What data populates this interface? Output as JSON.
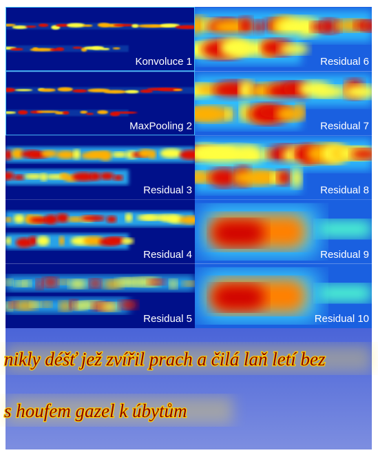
{
  "panels": [
    {
      "label": "Konvoluce 1"
    },
    {
      "label": "MaxPooling 2"
    },
    {
      "label": "Residual 3"
    },
    {
      "label": "Residual 4"
    },
    {
      "label": "Residual 5"
    },
    {
      "label": "Residual 6"
    },
    {
      "label": "Residual 7"
    },
    {
      "label": "Residual 8"
    },
    {
      "label": "Residual 9"
    },
    {
      "label": "Residual 10"
    }
  ],
  "text_lines": [
    "nikly déšť jež zvířil prach a čilá laň letí bez",
    "s houfem gazel k úbytům"
  ]
}
